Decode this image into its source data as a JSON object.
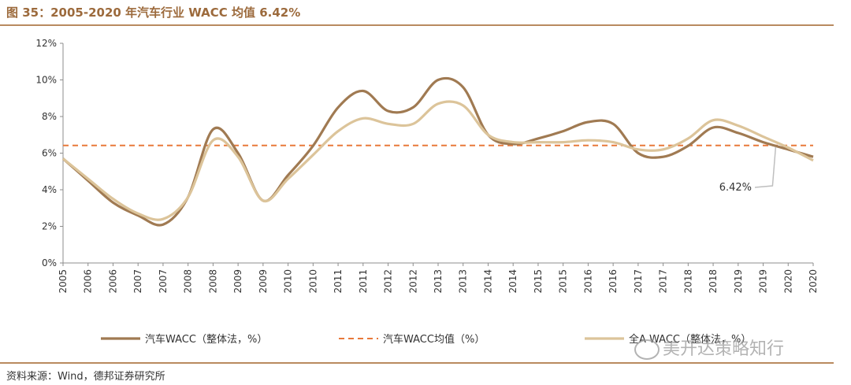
{
  "title": "图 35：2005-2020 年汽车行业 WACC 均值 6.42%",
  "source": "资料来源：Wind，德邦证券研究所",
  "watermark": "美开达策略知行",
  "colors": {
    "series1": "#a07a52",
    "series2": "#e8793a",
    "series3": "#dcc49a",
    "axis": "#8c8c8c",
    "text": "#333333"
  },
  "chart_data": {
    "type": "line",
    "title": "2005-2020 年汽车行业 WACC 均值 6.42%",
    "xlabel": "",
    "ylabel": "",
    "ylim": [
      0,
      12
    ],
    "yticks": [
      "0%",
      "2%",
      "4%",
      "6%",
      "8%",
      "10%",
      "12%"
    ],
    "ytick_values": [
      0,
      2,
      4,
      6,
      8,
      10,
      12
    ],
    "categories": [
      "2005",
      "2006",
      "2006",
      "2007",
      "2007",
      "2008",
      "2008",
      "2009",
      "2009",
      "2010",
      "2010",
      "2011",
      "2011",
      "2012",
      "2012",
      "2013",
      "2013",
      "2014",
      "2014",
      "2015",
      "2015",
      "2016",
      "2016",
      "2017",
      "2017",
      "2018",
      "2018",
      "2019",
      "2019",
      "2020",
      "2020"
    ],
    "series": [
      {
        "name": "汽车WACC（整体法，%）",
        "style": "solid",
        "values": [
          5.7,
          4.5,
          3.3,
          2.6,
          2.1,
          3.6,
          7.3,
          6.0,
          3.4,
          4.8,
          6.4,
          8.5,
          9.4,
          8.3,
          8.5,
          10.0,
          9.6,
          7.0,
          6.5,
          6.8,
          7.2,
          7.7,
          7.6,
          6.0,
          5.8,
          6.4,
          7.4,
          7.1,
          6.6,
          6.2,
          5.8
        ]
      },
      {
        "name": "汽车WACC均值（%）",
        "style": "dashed",
        "values": [
          6.42,
          6.42,
          6.42,
          6.42,
          6.42,
          6.42,
          6.42,
          6.42,
          6.42,
          6.42,
          6.42,
          6.42,
          6.42,
          6.42,
          6.42,
          6.42,
          6.42,
          6.42,
          6.42,
          6.42,
          6.42,
          6.42,
          6.42,
          6.42,
          6.42,
          6.42,
          6.42,
          6.42,
          6.42,
          6.42,
          6.42
        ]
      },
      {
        "name": "全A WACC（整体法，%）",
        "style": "solid",
        "values": [
          5.7,
          4.6,
          3.5,
          2.7,
          2.4,
          3.6,
          6.7,
          5.8,
          3.4,
          4.6,
          5.9,
          7.2,
          7.9,
          7.6,
          7.6,
          8.7,
          8.6,
          7.0,
          6.6,
          6.6,
          6.6,
          6.7,
          6.6,
          6.2,
          6.2,
          6.8,
          7.8,
          7.5,
          6.9,
          6.3,
          5.6
        ]
      }
    ],
    "annotations": [
      {
        "text": "6.42%",
        "points_to": "汽车WACC均值（%）"
      }
    ],
    "legend_position": "bottom",
    "grid": false
  }
}
